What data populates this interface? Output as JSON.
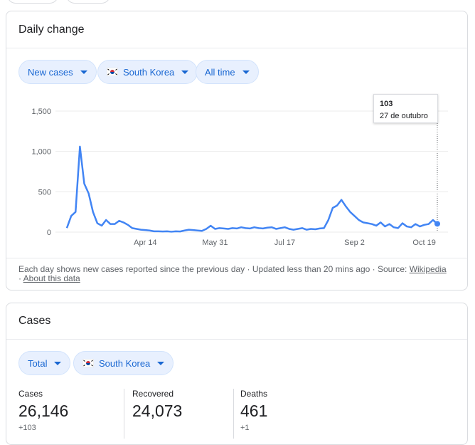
{
  "daily_change": {
    "title": "Daily change",
    "filters": [
      "New cases",
      "South Korea",
      "All time"
    ],
    "footer": {
      "text": "Each day shows new cases reported since the previous day",
      "updated": "Updated less than 20 mins ago",
      "source_label": "Source:",
      "source": "Wikipedia",
      "about": "About this data"
    },
    "tooltip": {
      "value": "103",
      "date": "27 de outubro"
    }
  },
  "chart_data": {
    "type": "line",
    "categories": [
      null,
      null,
      null,
      null,
      null,
      null,
      null,
      null,
      null,
      null,
      null,
      null,
      null,
      null,
      null,
      null,
      null,
      null,
      "Apr 14",
      null,
      null,
      null,
      null,
      null,
      null,
      null,
      null,
      null,
      null,
      null,
      null,
      null,
      null,
      null,
      "May 31",
      null,
      null,
      null,
      null,
      null,
      null,
      null,
      null,
      null,
      null,
      null,
      null,
      null,
      null,
      null,
      "Jul 17",
      null,
      null,
      null,
      null,
      null,
      null,
      null,
      null,
      null,
      null,
      null,
      null,
      null,
      null,
      null,
      "Sep 2",
      null,
      null,
      null,
      null,
      null,
      null,
      null,
      null,
      null,
      null,
      null,
      null,
      null,
      null,
      null,
      "Oct 19",
      null,
      null,
      null
    ],
    "values": [
      50,
      200,
      250,
      1060,
      600,
      480,
      250,
      110,
      80,
      150,
      100,
      100,
      140,
      120,
      90,
      50,
      40,
      30,
      25,
      20,
      10,
      10,
      8,
      10,
      5,
      10,
      8,
      20,
      30,
      25,
      20,
      15,
      40,
      79,
      40,
      50,
      45,
      40,
      50,
      45,
      60,
      50,
      45,
      60,
      50,
      45,
      55,
      60,
      40,
      50,
      60,
      40,
      30,
      40,
      50,
      30,
      40,
      35,
      45,
      50,
      150,
      300,
      330,
      400,
      320,
      250,
      200,
      150,
      120,
      110,
      100,
      80,
      120,
      70,
      100,
      60,
      50,
      110,
      70,
      60,
      100,
      70,
      90,
      100,
      150,
      103
    ],
    "color": "#4285f4",
    "ylim": [
      0,
      1500
    ],
    "yticks": [
      0,
      500,
      {
        "value": 1000,
        "label": "1,000"
      },
      {
        "value": 1500,
        "label": "1,500"
      }
    ],
    "grid": true
  },
  "cases": {
    "title": "Cases",
    "filters": [
      "Total",
      "South Korea"
    ],
    "stats": [
      {
        "label": "Cases",
        "value": "26,146",
        "change": "+103"
      },
      {
        "label": "Recovered",
        "value": "24,073"
      },
      {
        "label": "Deaths",
        "value": "461",
        "change": "+1"
      }
    ]
  }
}
